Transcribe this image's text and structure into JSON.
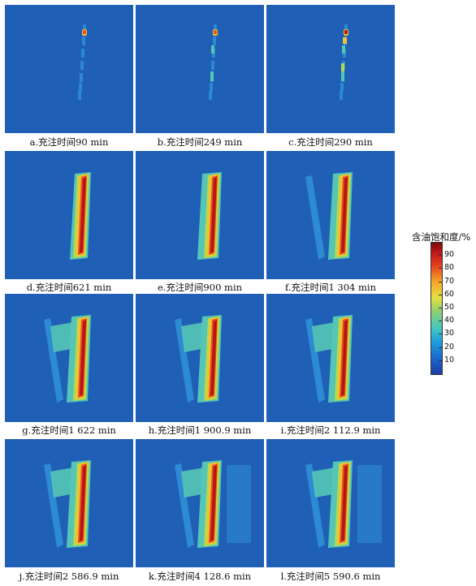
{
  "colors": {
    "background": "#1f5fb5",
    "low": "#2f8fd6",
    "mid": "#55c6b6",
    "midhigh": "#b5d84e",
    "high": "#f1c232",
    "hot": "#e8501f",
    "max": "#b51717"
  },
  "panels": [
    {
      "caption": "a.充注时间90 min",
      "stage": 1
    },
    {
      "caption": "b.充注时间249 min",
      "stage": 2
    },
    {
      "caption": "c.充注时间290 min",
      "stage": 3
    },
    {
      "caption": "d.充注时间621 min",
      "stage": 4
    },
    {
      "caption": "e.充注时间900 min",
      "stage": 5
    },
    {
      "caption": "f.充注时间1 304 min",
      "stage": 6
    },
    {
      "caption": "g.充注时间1 622 min",
      "stage": 7
    },
    {
      "caption": "h.充注时间1 900.9 min",
      "stage": 8
    },
    {
      "caption": "i.充注时间2 112.9 min",
      "stage": 9
    },
    {
      "caption": "j.充注时间2 586.9 min",
      "stage": 10
    },
    {
      "caption": "k.充注时间4 128.6 min",
      "stage": 11
    },
    {
      "caption": "l.充注时间5 590.6 min",
      "stage": 12
    }
  ],
  "colorbar": {
    "title": "含油饱和度/%",
    "ticks": [
      "90",
      "80",
      "70",
      "60",
      "50",
      "40",
      "30",
      "20",
      "10"
    ],
    "tick_values": [
      90,
      80,
      70,
      60,
      50,
      40,
      30,
      20,
      10
    ],
    "range": [
      0,
      100
    ]
  }
}
